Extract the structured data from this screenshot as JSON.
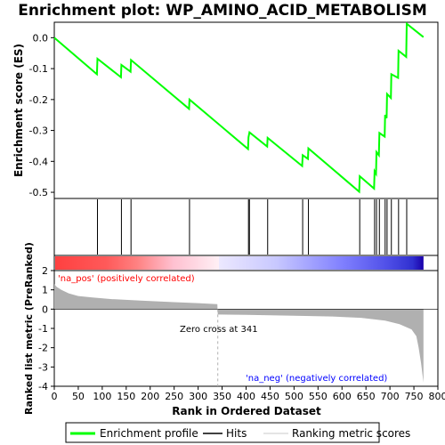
{
  "chart_data": {
    "type": "line",
    "title": "Enrichment plot: WP_AMINO_ACID_METABOLISM",
    "xlabel": "Rank in Ordered Dataset",
    "ylabel_top": "Enrichment score (ES)",
    "ylabel_bottom": "Ranked list metric (PreRanked)",
    "xlim": [
      0,
      800
    ],
    "x_ticks": [
      "0",
      "50",
      "100",
      "150",
      "200",
      "250",
      "300",
      "350",
      "400",
      "450",
      "500",
      "550",
      "600",
      "650",
      "700",
      "750",
      "800"
    ],
    "es_ylim": [
      -0.52,
      0.05
    ],
    "es_ticks": [
      "0.0",
      "-0.1",
      "-0.2",
      "-0.3",
      "-0.4",
      "-0.5"
    ],
    "metric_ylim": [
      -4,
      2
    ],
    "metric_ticks": [
      "2",
      "1",
      "0",
      "-1",
      "-2",
      "-3",
      "-4"
    ],
    "n_genes": 770,
    "hits": [
      90,
      140,
      160,
      282,
      405,
      407,
      445,
      518,
      530,
      637,
      668,
      672,
      678,
      690,
      694,
      703,
      718,
      735
    ],
    "es_points": [
      [
        0,
        0.0
      ],
      [
        89,
        -0.118
      ],
      [
        90,
        -0.068
      ],
      [
        139,
        -0.128
      ],
      [
        140,
        -0.088
      ],
      [
        159,
        -0.11
      ],
      [
        160,
        -0.072
      ],
      [
        281,
        -0.23
      ],
      [
        282,
        -0.2
      ],
      [
        404,
        -0.36
      ],
      [
        405,
        -0.322
      ],
      [
        407,
        -0.306
      ],
      [
        444,
        -0.352
      ],
      [
        445,
        -0.324
      ],
      [
        517,
        -0.415
      ],
      [
        518,
        -0.38
      ],
      [
        529,
        -0.392
      ],
      [
        530,
        -0.358
      ],
      [
        636,
        -0.498
      ],
      [
        637,
        -0.448
      ],
      [
        667,
        -0.488
      ],
      [
        668,
        -0.432
      ],
      [
        671,
        -0.44
      ],
      [
        672,
        -0.37
      ],
      [
        677,
        -0.38
      ],
      [
        678,
        -0.308
      ],
      [
        689,
        -0.32
      ],
      [
        690,
        -0.25
      ],
      [
        693,
        -0.26
      ],
      [
        694,
        -0.182
      ],
      [
        702,
        -0.195
      ],
      [
        703,
        -0.118
      ],
      [
        717,
        -0.13
      ],
      [
        718,
        -0.042
      ],
      [
        734,
        -0.062
      ],
      [
        735,
        0.045
      ],
      [
        770,
        0.002
      ]
    ],
    "metric_profile": [
      [
        0,
        1.3
      ],
      [
        5,
        1.15
      ],
      [
        15,
        1.0
      ],
      [
        30,
        0.82
      ],
      [
        50,
        0.68
      ],
      [
        80,
        0.6
      ],
      [
        120,
        0.52
      ],
      [
        180,
        0.44
      ],
      [
        250,
        0.36
      ],
      [
        300,
        0.31
      ],
      [
        340,
        0.26
      ],
      [
        341,
        -0.28
      ],
      [
        400,
        -0.3
      ],
      [
        500,
        -0.34
      ],
      [
        580,
        -0.38
      ],
      [
        640,
        -0.45
      ],
      [
        690,
        -0.6
      ],
      [
        720,
        -0.78
      ],
      [
        745,
        -1.05
      ],
      [
        755,
        -1.4
      ],
      [
        760,
        -2.0
      ],
      [
        765,
        -2.8
      ],
      [
        770,
        -3.8
      ]
    ],
    "zero_cross_rank": 341,
    "zero_cross_label": "Zero cross at 341",
    "pos_label": "'na_pos' (positively correlated)",
    "neg_label": "'na_neg' (negatively correlated)",
    "legend": [
      "Enrichment profile",
      "Hits",
      "Ranking metric scores"
    ],
    "colors": {
      "es_line": "#00ff00",
      "hit": "#000000",
      "metric_fill": "#b0b0b0",
      "pos_text": "#ff0000",
      "neg_text": "#0000ff"
    },
    "grid": false
  }
}
